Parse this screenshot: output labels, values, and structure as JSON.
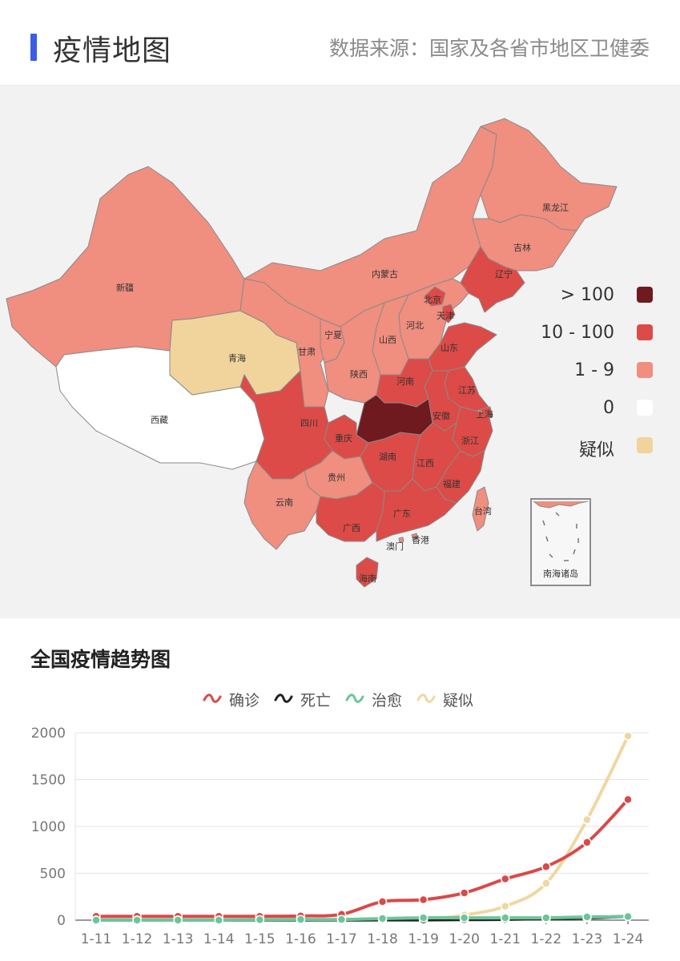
{
  "header": {
    "title": "疫情地图",
    "source": "数据来源：国家及各省市地区卫健委"
  },
  "map": {
    "colors": {
      "over_100": "#6e1a1f",
      "ten_to_100": "#dc4b47",
      "one_to_9": "#f08e7f",
      "zero": "#ffffff",
      "suspected": "#f0d49b",
      "border": "#8a8a8a"
    },
    "legend": [
      {
        "label": "> 100",
        "color": "#6e1a1f"
      },
      {
        "label": "10 - 100",
        "color": "#dc4b47"
      },
      {
        "label": "1 - 9",
        "color": "#f08e7f"
      },
      {
        "label": "0",
        "color": "#ffffff"
      },
      {
        "label": "疑似",
        "color": "#f0d49b"
      }
    ],
    "provinces": {
      "xinjiang": "新疆",
      "xizang": "西藏",
      "qinghai": "青海",
      "gansu": "甘肃",
      "neimenggu": "内蒙古",
      "heilongjiang": "黑龙江",
      "jilin": "吉林",
      "liaoning": "辽宁",
      "beijing": "北京",
      "tianjin": "天津",
      "hebei": "河北",
      "shanxi": "山西",
      "ningxia": "宁夏",
      "shaanxi": "陕西",
      "shandong": "山东",
      "henan": "河南",
      "jiangsu": "江苏",
      "anhui": "安徽",
      "shanghai": "上海",
      "hubei": "湖北",
      "sichuan": "四川",
      "chongqing": "重庆",
      "zhejiang": "浙江",
      "hunan": "湖南",
      "jiangxi": "江西",
      "guizhou": "贵州",
      "yunnan": "云南",
      "fujian": "福建",
      "taiwan": "台湾",
      "guangxi": "广西",
      "guangdong": "广东",
      "xianggang": "香港",
      "aomen": "澳门",
      "hainan": "海南"
    },
    "inset_label": "南海诸岛"
  },
  "trend": {
    "title": "全国疫情趋势图",
    "legend": [
      {
        "label": "确诊",
        "color": "#d94a48"
      },
      {
        "label": "死亡",
        "color": "#222222"
      },
      {
        "label": "治愈",
        "color": "#6cc59a"
      },
      {
        "label": "疑似",
        "color": "#efd7a2"
      }
    ]
  },
  "chart_data": {
    "type": "line",
    "x": [
      "1-11",
      "1-12",
      "1-13",
      "1-14",
      "1-15",
      "1-16",
      "1-17",
      "1-18",
      "1-19",
      "1-20",
      "1-21",
      "1-22",
      "1-23",
      "1-24"
    ],
    "ylim": [
      0,
      2000
    ],
    "yticks": [
      0,
      500,
      1000,
      1500,
      2000
    ],
    "grid": true,
    "legend_position": "top",
    "series": [
      {
        "name": "确诊",
        "color": "#d94a48",
        "values": [
          41,
          41,
          41,
          41,
          41,
          45,
          62,
          198,
          218,
          291,
          440,
          571,
          830,
          1287
        ]
      },
      {
        "name": "死亡",
        "color": "#222222",
        "values": [
          1,
          1,
          1,
          1,
          2,
          2,
          2,
          3,
          3,
          6,
          9,
          17,
          25,
          41
        ]
      },
      {
        "name": "治愈",
        "color": "#6cc59a",
        "values": [
          0,
          0,
          0,
          0,
          5,
          7,
          7,
          17,
          25,
          25,
          25,
          25,
          34,
          38
        ]
      },
      {
        "name": "疑似",
        "color": "#efd7a2",
        "values": [
          null,
          null,
          null,
          null,
          null,
          null,
          null,
          null,
          0,
          54,
          149,
          393,
          1072,
          1965
        ]
      }
    ]
  }
}
